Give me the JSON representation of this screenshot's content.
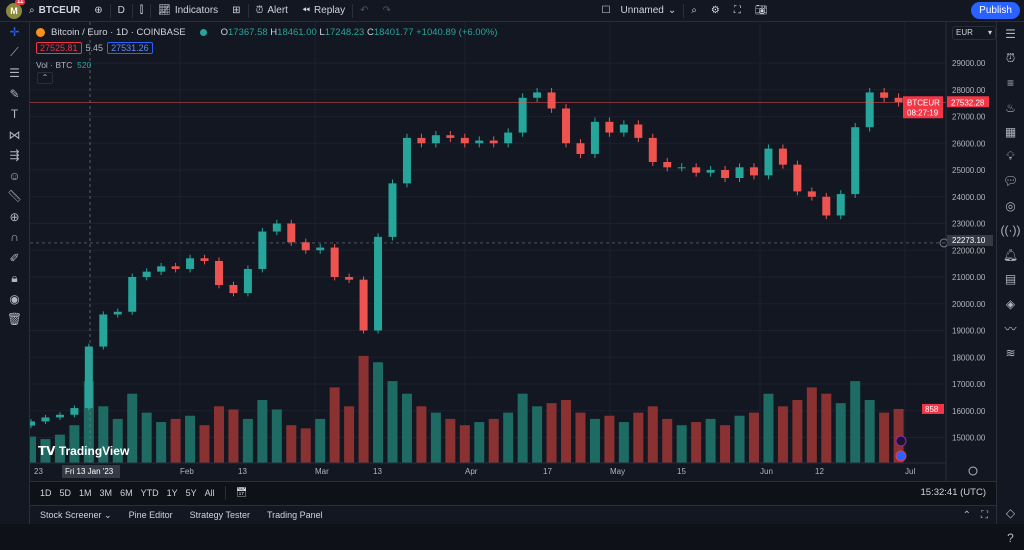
{
  "topbar": {
    "avatar_letter": "M",
    "notifications": "11",
    "symbol": "BTCEUR",
    "interval": "D",
    "indicators": "Indicators",
    "alert": "Alert",
    "replay": "Replay",
    "layout_name": "Unnamed",
    "publish": "Publish"
  },
  "legend": {
    "title": "Bitcoin / Euro · 1D · COINBASE",
    "o_label": "O",
    "o": "17367.58",
    "h_label": "H",
    "h": "18461.00",
    "l_label": "L",
    "l": "17248.23",
    "c_label": "C",
    "c": "18401.77",
    "change": "+1040.89 (+6.00%)",
    "bid": "27525.81",
    "spread": "5.45",
    "ask": "27531.26",
    "vol_label": "Vol · BTC",
    "vol_value": "520"
  },
  "price_axis": {
    "currency": "EUR",
    "labels": [
      "29000.00",
      "28000.00",
      "27000.00",
      "26000.00",
      "25000.00",
      "24000.00",
      "23000.00",
      "22000.00",
      "21000.00",
      "20000.00",
      "19000.00",
      "18000.00",
      "17000.00",
      "16000.00",
      "15000.00"
    ],
    "last_symbol": "BTCEUR",
    "last_price": "27532.28",
    "countdown": "08:27:19",
    "crosshair_price": "22273.10",
    "volume_label": "858"
  },
  "time_axis": {
    "labels": [
      "23",
      "Feb",
      "13",
      "Mar",
      "13",
      "Apr",
      "17",
      "May",
      "15",
      "Jun",
      "12",
      "Jul"
    ],
    "crosshair_date": "Fri 13 Jan '23"
  },
  "watermark": "TradingView",
  "ranges": [
    "1D",
    "5D",
    "1M",
    "3M",
    "6M",
    "YTD",
    "1Y",
    "5Y",
    "All"
  ],
  "clock": "15:32:41 (UTC)",
  "bottom_tabs": [
    "Stock Screener",
    "Pine Editor",
    "Strategy Tester",
    "Trading Panel"
  ],
  "colors": {
    "up": "#26a69a",
    "down": "#ef5350",
    "accent": "#2962ff",
    "background": "#131722"
  },
  "chart_data": {
    "type": "candlestick",
    "symbol": "BTCEUR",
    "interval": "1D",
    "sample_every_days": 3,
    "start": "2023-01-01",
    "ylim": [
      14500,
      29700
    ],
    "close": [
      15600,
      15750,
      15850,
      16100,
      18400,
      19600,
      19700,
      21000,
      21200,
      21400,
      21300,
      21700,
      21600,
      20700,
      20400,
      21300,
      22700,
      23000,
      22300,
      22000,
      22100,
      21000,
      20900,
      19000,
      22500,
      24500,
      26200,
      26000,
      26300,
      26200,
      26000,
      26100,
      26000,
      26400,
      27700,
      27900,
      27300,
      26000,
      25600,
      26800,
      26400,
      26700,
      26200,
      25300,
      25100,
      25100,
      24900,
      25000,
      24700,
      25100,
      24800,
      25800,
      25200,
      24200,
      24000,
      23300,
      24100,
      26600,
      27900,
      27700,
      27532
    ],
    "volume": [
      420,
      380,
      450,
      600,
      1300,
      900,
      700,
      1100,
      800,
      650,
      700,
      750,
      600,
      900,
      850,
      700,
      1000,
      850,
      600,
      550,
      700,
      1200,
      900,
      1700,
      1600,
      1300,
      1100,
      900,
      800,
      700,
      600,
      650,
      700,
      800,
      1100,
      900,
      950,
      1000,
      800,
      700,
      750,
      650,
      800,
      900,
      700,
      600,
      650,
      700,
      600,
      750,
      800,
      1100,
      900,
      1000,
      1200,
      1100,
      950,
      1300,
      1000,
      800,
      858
    ]
  }
}
